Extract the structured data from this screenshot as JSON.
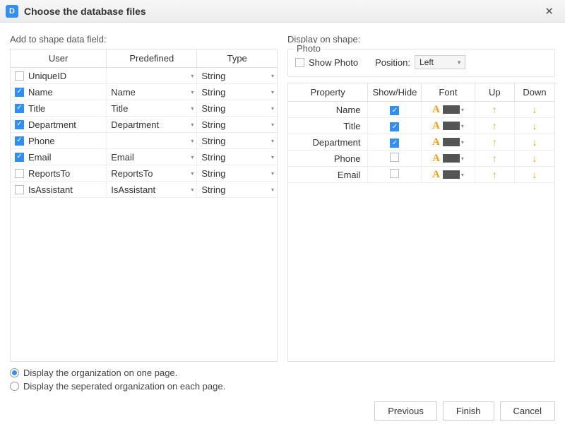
{
  "window": {
    "title": "Choose the database files"
  },
  "left": {
    "label": "Add to shape data field:",
    "columns": [
      "User",
      "Predefined",
      "Type"
    ],
    "rows": [
      {
        "checked": false,
        "user": "UniqueID",
        "predefined": "",
        "type": "String"
      },
      {
        "checked": true,
        "user": "Name",
        "predefined": "Name",
        "type": "String"
      },
      {
        "checked": true,
        "user": "Title",
        "predefined": "Title",
        "type": "String"
      },
      {
        "checked": true,
        "user": "Department",
        "predefined": "Department",
        "type": "String"
      },
      {
        "checked": true,
        "user": "Phone",
        "predefined": "",
        "type": "String"
      },
      {
        "checked": true,
        "user": "Email",
        "predefined": "Email",
        "type": "String"
      },
      {
        "checked": false,
        "user": "ReportsTo",
        "predefined": "ReportsTo",
        "type": "String"
      },
      {
        "checked": false,
        "user": "IsAssistant",
        "predefined": "IsAssistant",
        "type": "String"
      }
    ]
  },
  "right": {
    "label": "Display on shape:",
    "photo": {
      "legend": "Photo",
      "show_label": "Show Photo",
      "show_checked": false,
      "position_label": "Position:",
      "position_value": "Left"
    },
    "columns": [
      "Property",
      "Show/Hide",
      "Font",
      "Up",
      "Down"
    ],
    "rows": [
      {
        "property": "Name",
        "show": true
      },
      {
        "property": "Title",
        "show": true
      },
      {
        "property": "Department",
        "show": true
      },
      {
        "property": "Phone",
        "show": false
      },
      {
        "property": "Email",
        "show": false
      }
    ]
  },
  "radios": {
    "opt1": "Display the organization on one page.",
    "opt2": "Display the seperated organization on each page.",
    "selected": 0
  },
  "footer": {
    "previous": "Previous",
    "finish": "Finish",
    "cancel": "Cancel"
  },
  "colors": {
    "accent": "#2f8ff5",
    "arrow": "#f59e0b",
    "swatch": "#555555"
  }
}
